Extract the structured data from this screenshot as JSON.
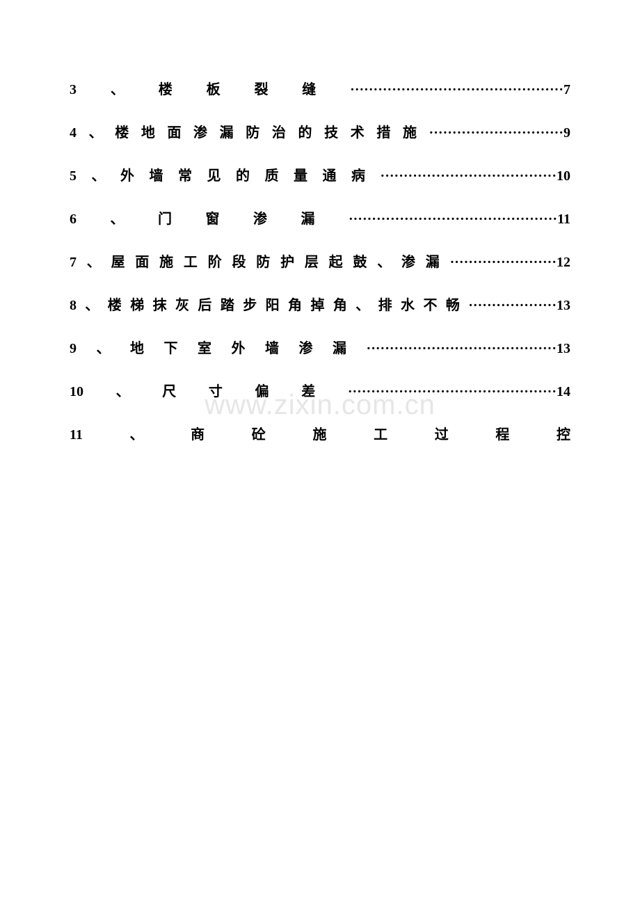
{
  "watermark": "www.zixin.com.cn",
  "font_size": 20,
  "toc_entries": [
    {
      "title": "3、楼板裂缝",
      "dots": "··············································",
      "page": "7"
    },
    {
      "title": "4、楼地面渗漏防治的技术措施",
      "dots": "·····························",
      "page": "9"
    },
    {
      "title": "5、外墙常见的质量通病",
      "dots": "······································",
      "page": "10"
    },
    {
      "title": "6、门窗渗漏",
      "dots": "·············································",
      "page": "11"
    },
    {
      "title": "7、屋面施工阶段防护层起鼓、渗漏",
      "dots": "·······················",
      "page": "12"
    },
    {
      "title": "8、楼梯抹灰后踏步阳角掉角、排水不畅",
      "dots": "···················",
      "page": "13"
    },
    {
      "title": "9、地下室外墙渗漏",
      "dots": "·········································",
      "page": "13"
    },
    {
      "title": "10、尺寸偏差",
      "dots": "·············································",
      "page": "14"
    },
    {
      "title": "11、商砼施工过程控",
      "dots": "",
      "page": ""
    }
  ]
}
